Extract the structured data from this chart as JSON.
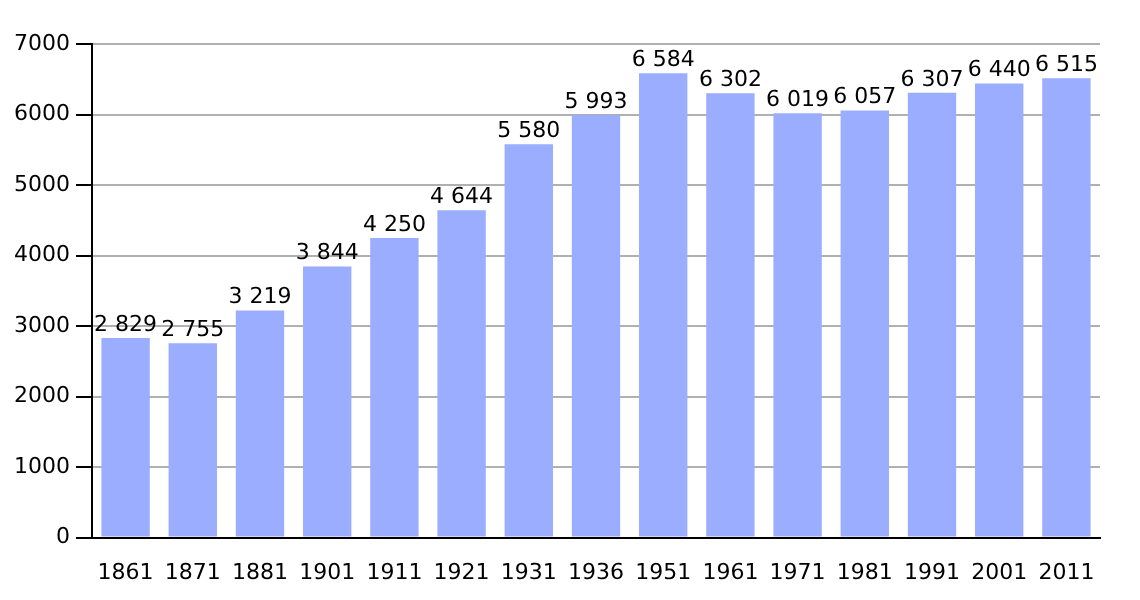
{
  "chart_data": {
    "type": "bar",
    "categories": [
      "1861",
      "1871",
      "1881",
      "1901",
      "1911",
      "1921",
      "1931",
      "1936",
      "1951",
      "1961",
      "1971",
      "1981",
      "1991",
      "2001",
      "2011"
    ],
    "values": [
      2829,
      2755,
      3219,
      3844,
      4250,
      4644,
      5580,
      5993,
      6584,
      6302,
      6019,
      6057,
      6307,
      6440,
      6515
    ],
    "value_labels": [
      "2 829",
      "2 755",
      "3 219",
      "3 844",
      "4 250",
      "4 644",
      "5 580",
      "5 993",
      "6 584",
      "6 302",
      "6 019",
      "6 057",
      "6 307",
      "6 440",
      "6 515"
    ],
    "color": "#9aadff",
    "ylim": [
      0,
      7000
    ],
    "yticks": [
      0,
      1000,
      2000,
      3000,
      4000,
      5000,
      6000,
      7000
    ],
    "grid": "y"
  }
}
